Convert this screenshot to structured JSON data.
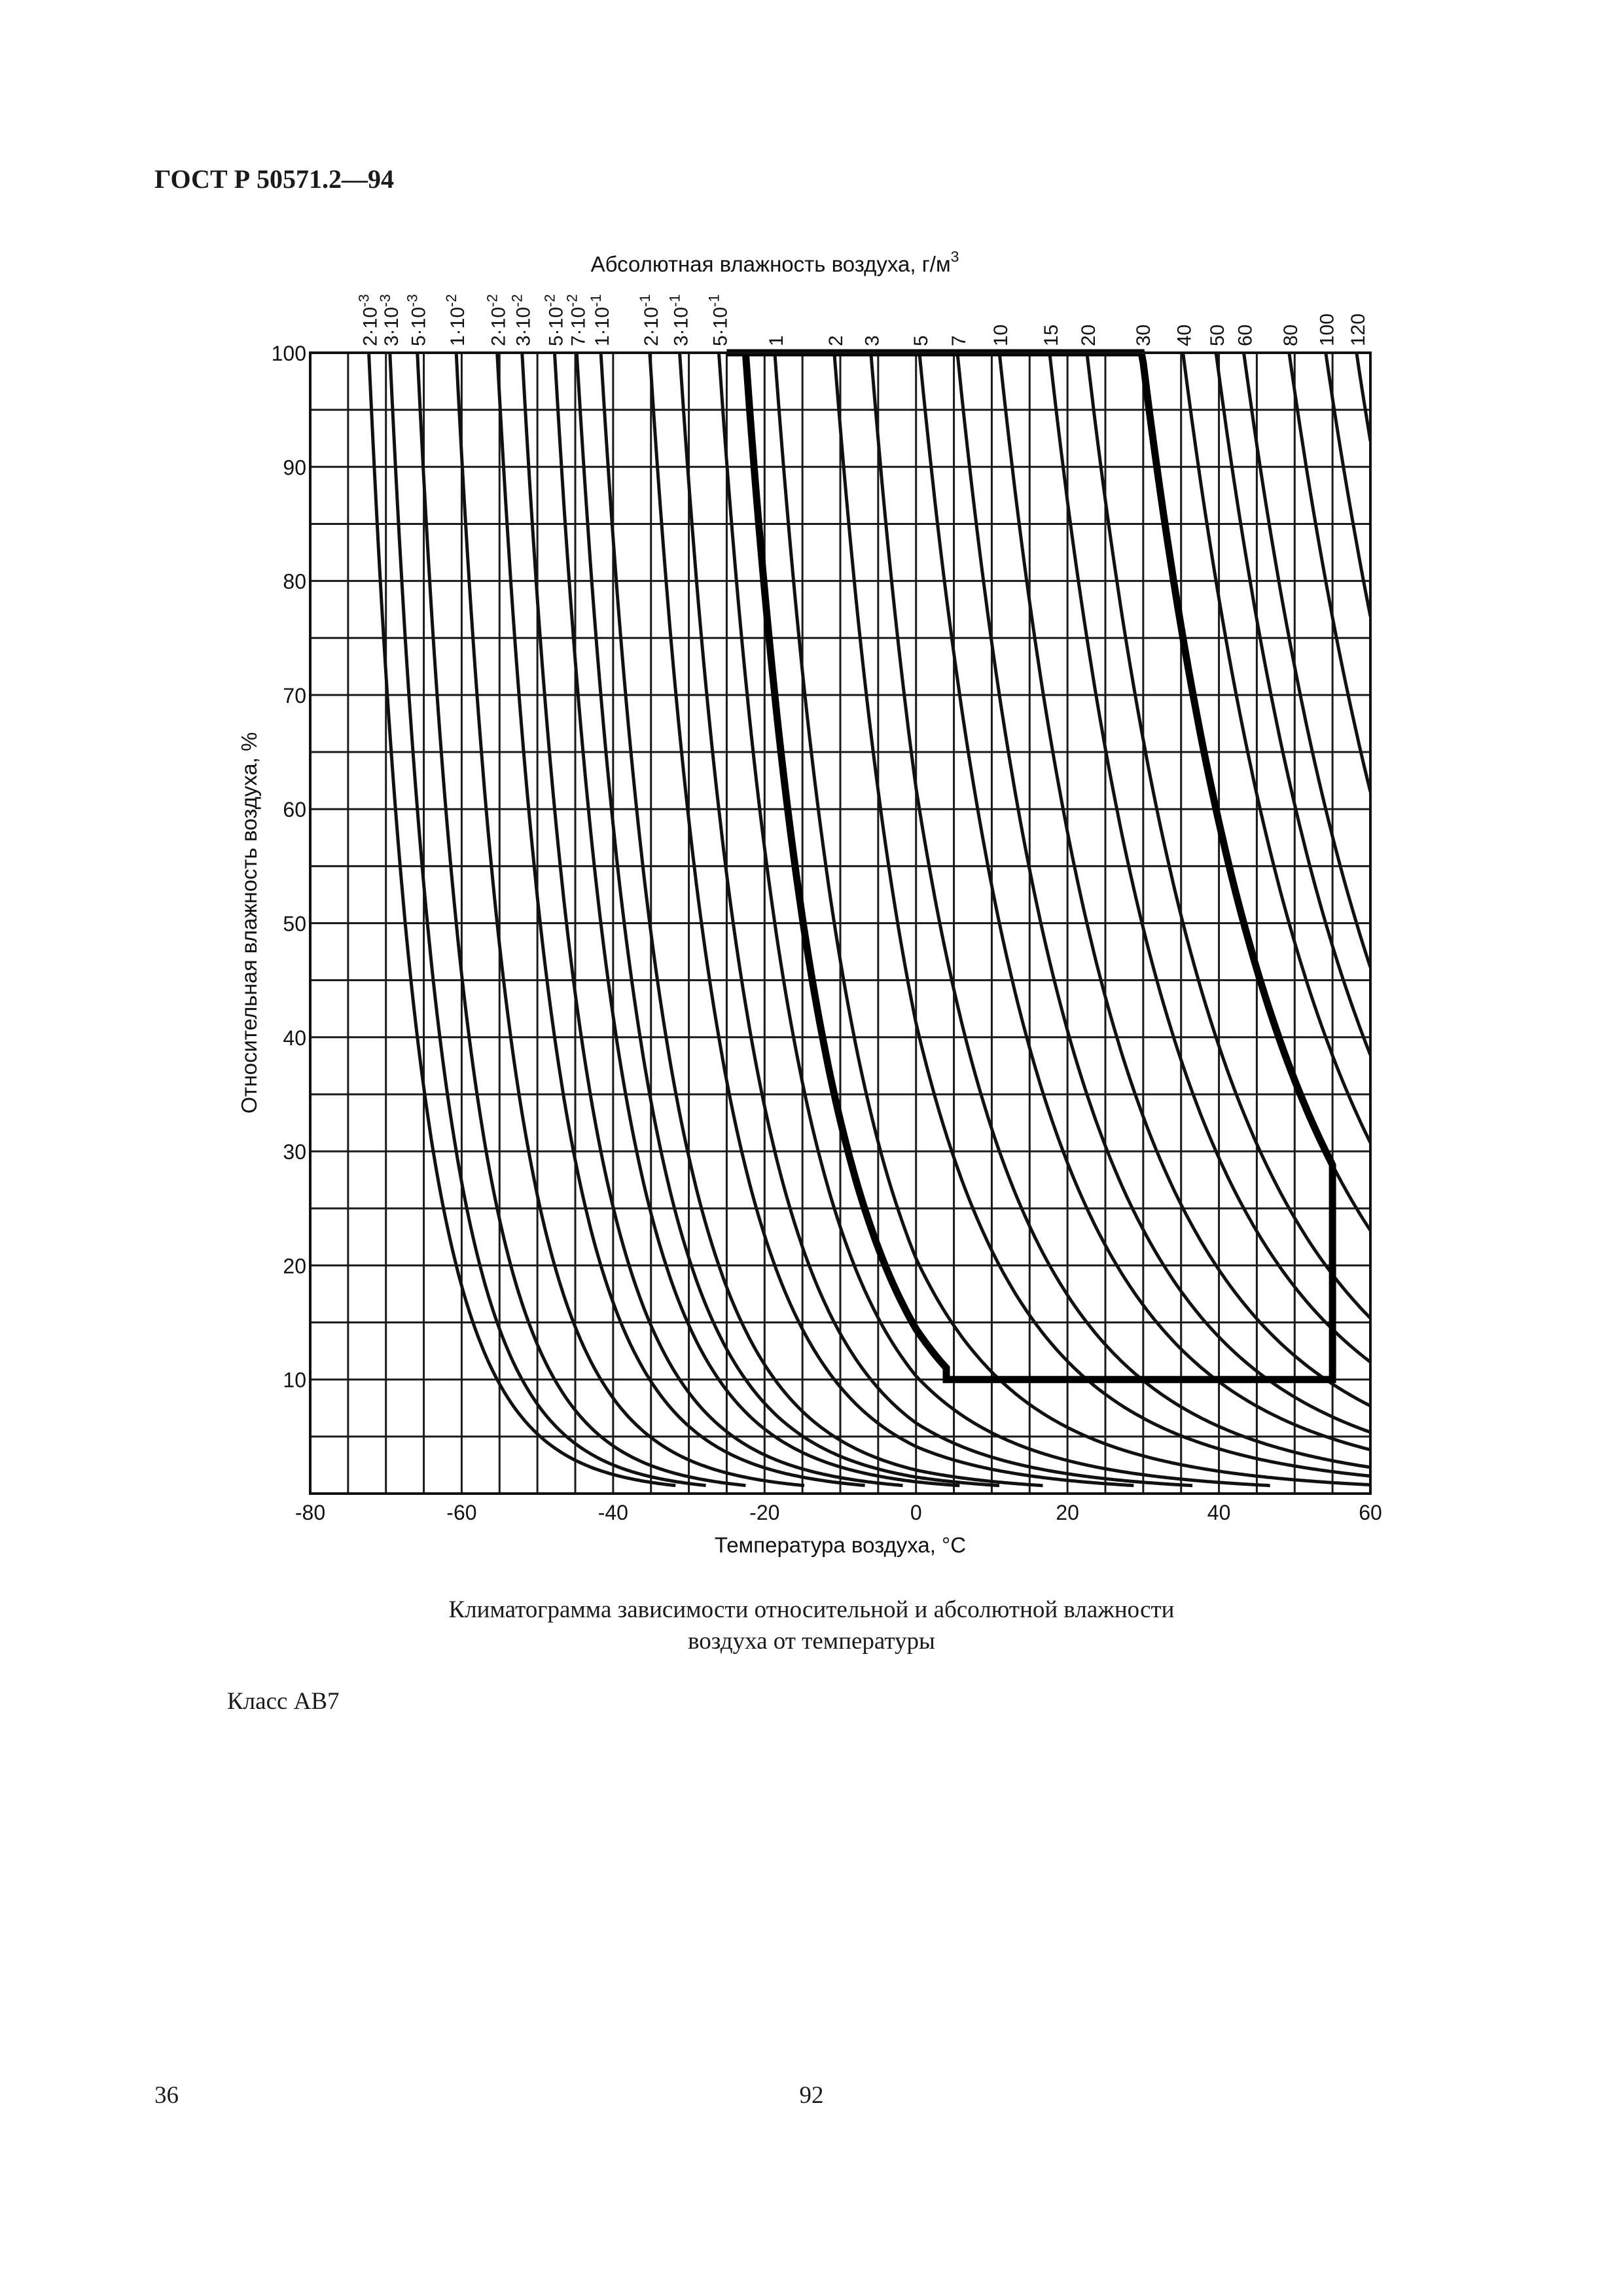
{
  "header": {
    "standard": "ГОСТ Р 50571.2—94"
  },
  "chart_data": {
    "type": "line",
    "title": "",
    "xlabel": "Температура воздуха, °С",
    "ylabel": "Относительная влажность воздуха, %",
    "top_axis_label": "Абсолютная влажность воздуха, г/м",
    "top_axis_label_sup": "3",
    "xlim": [
      -80,
      60
    ],
    "ylim": [
      0,
      100
    ],
    "x_ticks": [
      -80,
      -60,
      -40,
      -20,
      0,
      20,
      40,
      60
    ],
    "x_tick_labels": [
      "-80",
      "-60",
      "-40",
      "-20",
      "0",
      "20",
      "40",
      "60"
    ],
    "y_ticks": [
      10,
      20,
      30,
      40,
      50,
      60,
      70,
      80,
      90,
      100
    ],
    "y_tick_labels": [
      "10",
      "20",
      "30",
      "40",
      "50",
      "60",
      "70",
      "80",
      "90",
      "100"
    ],
    "grid": true,
    "x_grid_step": 5,
    "y_grid_step": 5,
    "curve_family": "constant absolute humidity (isolines)",
    "series": [
      {
        "label_base": "2·10",
        "label_exp": "-3",
        "value": 0.002
      },
      {
        "label_base": "3·10",
        "label_exp": "-3",
        "value": 0.003
      },
      {
        "label_base": "5·10",
        "label_exp": "-3",
        "value": 0.005
      },
      {
        "label_base": "1·10",
        "label_exp": "-2",
        "value": 0.01
      },
      {
        "label_base": "2·10",
        "label_exp": "-2",
        "value": 0.02
      },
      {
        "label_base": "3·10",
        "label_exp": "-2",
        "value": 0.03
      },
      {
        "label_base": "5·10",
        "label_exp": "-2",
        "value": 0.05
      },
      {
        "label_base": "7·10",
        "label_exp": "-2",
        "value": 0.07
      },
      {
        "label_base": "1·10",
        "label_exp": "-1",
        "value": 0.1
      },
      {
        "label_base": "2·10",
        "label_exp": "-1",
        "value": 0.2
      },
      {
        "label_base": "3·10",
        "label_exp": "-1",
        "value": 0.3
      },
      {
        "label_base": "5·10",
        "label_exp": "-1",
        "value": 0.5
      },
      {
        "label_base": "1",
        "label_exp": "",
        "value": 1
      },
      {
        "label_base": "2",
        "label_exp": "",
        "value": 2
      },
      {
        "label_base": "3",
        "label_exp": "",
        "value": 3
      },
      {
        "label_base": "5",
        "label_exp": "",
        "value": 5
      },
      {
        "label_base": "7",
        "label_exp": "",
        "value": 7
      },
      {
        "label_base": "10",
        "label_exp": "",
        "value": 10
      },
      {
        "label_base": "15",
        "label_exp": "",
        "value": 15
      },
      {
        "label_base": "20",
        "label_exp": "",
        "value": 20
      },
      {
        "label_base": "30",
        "label_exp": "",
        "value": 30
      },
      {
        "label_base": "40",
        "label_exp": "",
        "value": 40
      },
      {
        "label_base": "50",
        "label_exp": "",
        "value": 50
      },
      {
        "label_base": "60",
        "label_exp": "",
        "value": 60
      },
      {
        "label_base": "80",
        "label_exp": "",
        "value": 80
      },
      {
        "label_base": "100",
        "label_exp": "",
        "value": 100
      },
      {
        "label_base": "120",
        "label_exp": "",
        "value": 120
      }
    ],
    "highlighted_boundary": {
      "description": "class AB7 climatic region",
      "points": [
        {
          "x": -25,
          "y": 100
        },
        {
          "x": 29,
          "y": 100
        },
        {
          "x": 55,
          "y": 25
        },
        {
          "x": 55,
          "y": 10
        },
        {
          "x": 4,
          "y": 10
        },
        {
          "x": -25,
          "y": 100
        }
      ],
      "upper_right_isoline_value": 30,
      "lower_left_isoline_value": 0.7
    }
  },
  "caption": {
    "line1": "Климатограмма зависимости относительной и абсолютной влажности",
    "line2": "воздуха от температуры"
  },
  "class_label": "Класс АВ7",
  "page_numbers": {
    "left": "36",
    "center": "92"
  }
}
